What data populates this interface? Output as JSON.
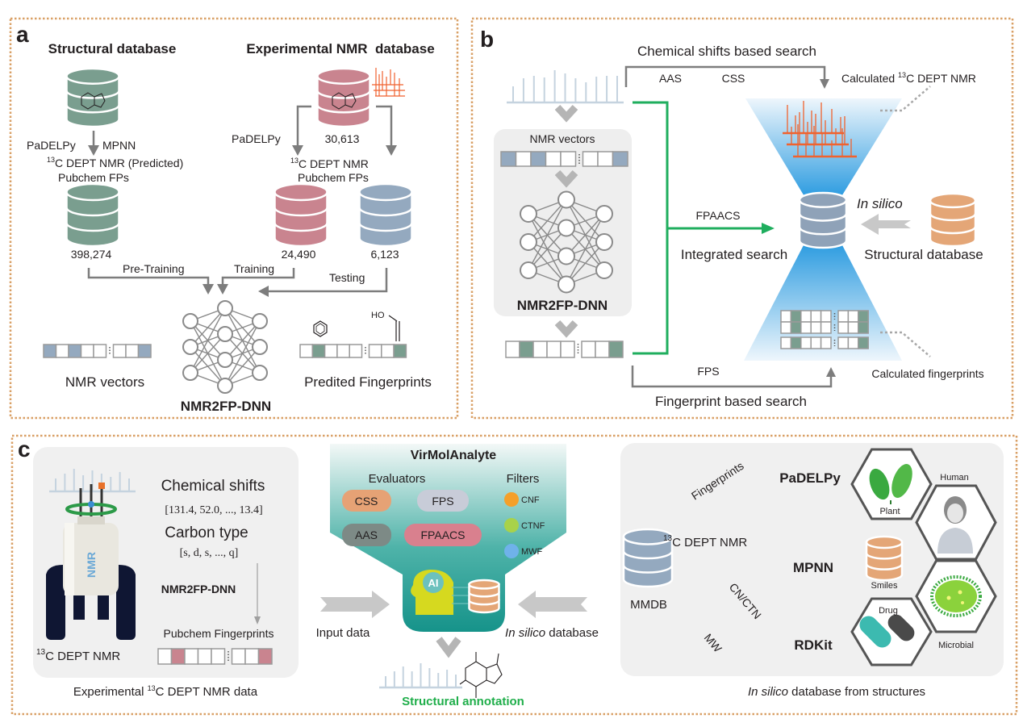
{
  "colors": {
    "panel_border": "#d9a066",
    "db_green": "#7a9e8f",
    "db_pink": "#c9848f",
    "db_blue": "#94a9bf",
    "db_orange": "#e4a677",
    "db_slate": "#8fa2b8",
    "search_green": "#1fae5e",
    "nmr_orange": "#f0622e",
    "teal": "#1a9a8f",
    "annotation_green": "#1fae4a",
    "arrow_gray": "#c8c8c8",
    "line_gray": "#7d7d7d"
  },
  "panel_a": {
    "label": "a",
    "structural_db_title": "Structural database",
    "experimental_db_title": "Experimental NMR  database",
    "padelpy_left": "PaDELPy",
    "mpnn": "MPNN",
    "predicted_nmr": {
      "sup": "13",
      "text": "C DEPT NMR (Predicted)"
    },
    "pubchem_fps_left": "Pubchem FPs",
    "count_pretraining": "398,274",
    "padelpy_right": "PaDELPy",
    "count_experimental": "30,613",
    "experimental_nmr": {
      "sup": "13",
      "text": "C DEPT NMR"
    },
    "pubchem_fps_right": "Pubchem FPs",
    "count_training": "24,490",
    "count_testing": "6,123",
    "pre_training": "Pre-Training",
    "training": "Training",
    "testing": "Testing",
    "nmr_vectors": "NMR vectors",
    "model": "NMR2FP-DNN",
    "predicted_fps": "Predited Fingerprints",
    "hydroxyl": "HO"
  },
  "panel_b": {
    "label": "b",
    "chemical_shift_search": "Chemical shifts based search",
    "aas": "AAS",
    "css": "CSS",
    "calculated_nmr": {
      "pre": "Calculated ",
      "sup": "13",
      "text": "C DEPT NMR"
    },
    "nmr_vectors": "NMR vectors",
    "model": "NMR2FP-DNN",
    "fpaacs": "FPAACS",
    "integrated_search": "Integrated search",
    "in_silico": "In silico",
    "structural_db": "Structural database",
    "fps": "FPS",
    "calculated_fps": "Calculated fingerprints",
    "fingerprint_search": "Fingerprint based search"
  },
  "panel_c": {
    "label": "c",
    "chemical_shifts": "Chemical shifts",
    "shift_values": "[131.4, 52.0, ..., 13.4]",
    "carbon_type": "Carbon type",
    "carbon_values": "[s, d, s, ..., q]",
    "model": "NMR2FP-DNN",
    "pubchem_fingerprints": "Pubchem Fingerprints",
    "dept_nmr": {
      "sup": "13",
      "text": "C DEPT NMR"
    },
    "magnet_label": "NMR",
    "caption_left": {
      "pre": "Experimental ",
      "sup": "13",
      "text": "C DEPT NMR data"
    },
    "app_name": "VirMolAnalyte",
    "evaluators_label": "Evaluators",
    "evaluators": [
      "CSS",
      "FPS",
      "AAS",
      "FPAACS"
    ],
    "filters_label": "Filters",
    "filters": [
      "CNF",
      "CTNF",
      "MWF"
    ],
    "ai_label": "AI",
    "input_data": "Input data",
    "in_silico_db": {
      "italic": "In silico",
      "text": " database"
    },
    "structural_annotation": "Structural annotation",
    "fingerprints": "Fingerprints",
    "padelpy": "PaDELPy",
    "mpnn": "MPNN",
    "rdkit": "RDKit",
    "mmdb_nmr": {
      "sup": "13",
      "text": "C DEPT NMR"
    },
    "mmdb": "MMDB",
    "cn_ctn": "CN/CTN",
    "mw": "MW",
    "sources": {
      "human": "Human",
      "plant": "Plant",
      "smiles": "Smiles",
      "drug": "Drug",
      "microbial": "Microbial"
    },
    "caption_right": {
      "italic": "In silico",
      "text": " database from structures"
    }
  }
}
